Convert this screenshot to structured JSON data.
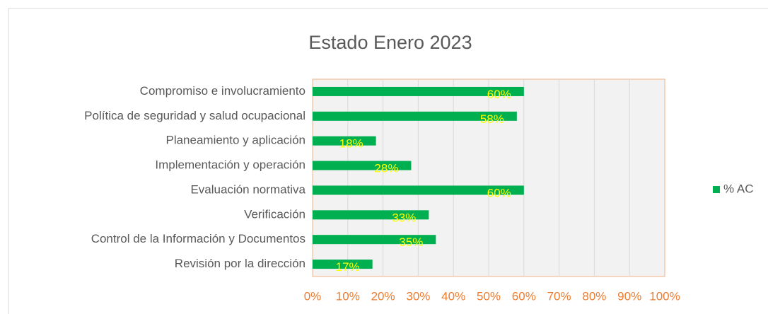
{
  "chart_data": {
    "type": "bar",
    "orientation": "horizontal",
    "title": "Estado Enero  2023",
    "categories": [
      "Compromiso e involucramiento",
      "Política de seguridad y salud ocupacional",
      "Planeamiento y aplicación",
      "Implementación y operación",
      "Evaluación normativa",
      "Verificación",
      "Control de la Información y Documentos",
      "Revisión por la dirección"
    ],
    "series": [
      {
        "name": "% AC",
        "color": "#00b050",
        "values": [
          60,
          58,
          18,
          28,
          60,
          33,
          35,
          17
        ],
        "value_labels": [
          "60%",
          "58%",
          "18%",
          "28%",
          "60%",
          "33%",
          "35%",
          "17%"
        ]
      }
    ],
    "xlim": [
      0,
      100
    ],
    "xticks": [
      {
        "value": 0,
        "label": "0%"
      },
      {
        "value": 10,
        "label": "10%"
      },
      {
        "value": 20,
        "label": "20%"
      },
      {
        "value": 30,
        "label": "30%"
      },
      {
        "value": 40,
        "label": "40%"
      },
      {
        "value": 50,
        "label": "50%"
      },
      {
        "value": 60,
        "label": "60%"
      },
      {
        "value": 70,
        "label": "70%"
      },
      {
        "value": 80,
        "label": "80%"
      },
      {
        "value": 90,
        "label": "90%"
      },
      {
        "value": 100,
        "label": "100%"
      }
    ],
    "grid": true,
    "legend": "right"
  }
}
